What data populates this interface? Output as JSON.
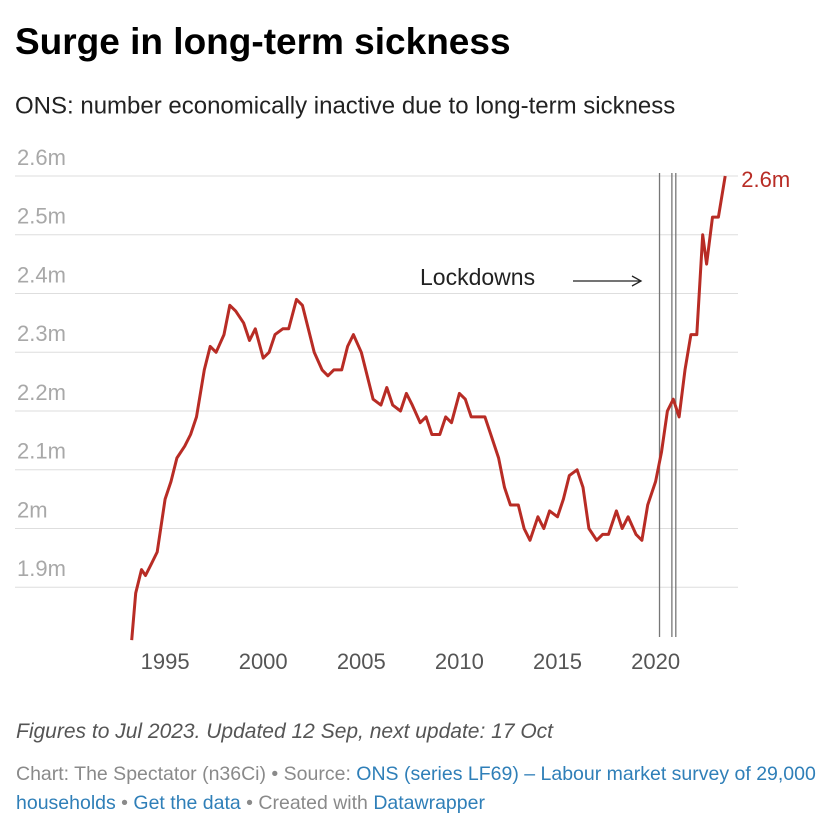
{
  "chart_data": {
    "type": "line",
    "title": "Surge in long-term sickness",
    "subtitle": "ONS: number economically inactive due to long-term sickness",
    "xlim": [
      1987.35,
      2024.2
    ],
    "xticks": [
      1995,
      2000,
      2005,
      2010,
      2015,
      2020
    ],
    "ylim": [
      1.8,
      2.6
    ],
    "yticks": [
      {
        "value": 1.9,
        "label": "1.9m"
      },
      {
        "value": 2.0,
        "label": "2m"
      },
      {
        "value": 2.1,
        "label": "2.1m"
      },
      {
        "value": 2.2,
        "label": "2.2m"
      },
      {
        "value": 2.3,
        "label": "2.3m"
      },
      {
        "value": 2.4,
        "label": "2.4m"
      },
      {
        "value": 2.5,
        "label": "2.5m"
      },
      {
        "value": 2.6,
        "label": "2.6m"
      }
    ],
    "grid": true,
    "series": [
      {
        "color": "#b82c25",
        "x": [
          1993.3,
          1993.5,
          1993.8,
          1994.0,
          1994.3,
          1994.6,
          1995.0,
          1995.3,
          1995.6,
          1996.0,
          1996.3,
          1996.6,
          1997.0,
          1997.3,
          1997.6,
          1998.0,
          1998.3,
          1998.6,
          1999.0,
          1999.3,
          1999.6,
          2000.0,
          2000.3,
          2000.6,
          2001.0,
          2001.3,
          2001.7,
          2002.0,
          2002.3,
          2002.6,
          2003.0,
          2003.3,
          2003.6,
          2004.0,
          2004.3,
          2004.6,
          2005.0,
          2005.3,
          2005.6,
          2006.0,
          2006.3,
          2006.6,
          2007.0,
          2007.3,
          2007.6,
          2008.0,
          2008.3,
          2008.6,
          2009.0,
          2009.3,
          2009.6,
          2010.0,
          2010.3,
          2010.6,
          2011.0,
          2011.3,
          2011.6,
          2012.0,
          2012.3,
          2012.6,
          2013.0,
          2013.3,
          2013.6,
          2014.0,
          2014.3,
          2014.6,
          2015.0,
          2015.3,
          2015.6,
          2016.0,
          2016.3,
          2016.6,
          2017.0,
          2017.3,
          2017.6,
          2018.0,
          2018.3,
          2018.6,
          2019.0,
          2019.3,
          2019.6,
          2020.0,
          2020.3,
          2020.6,
          2020.9,
          2021.2,
          2021.5,
          2021.8,
          2022.1,
          2022.4,
          2022.6,
          2022.9,
          2023.2,
          2023.55
        ],
        "values": [
          1.81,
          1.89,
          1.93,
          1.92,
          1.94,
          1.96,
          2.05,
          2.08,
          2.12,
          2.14,
          2.16,
          2.19,
          2.27,
          2.31,
          2.3,
          2.33,
          2.38,
          2.37,
          2.35,
          2.32,
          2.34,
          2.29,
          2.3,
          2.33,
          2.34,
          2.34,
          2.39,
          2.38,
          2.34,
          2.3,
          2.27,
          2.26,
          2.27,
          2.27,
          2.31,
          2.33,
          2.3,
          2.26,
          2.22,
          2.21,
          2.24,
          2.21,
          2.2,
          2.23,
          2.21,
          2.18,
          2.19,
          2.16,
          2.16,
          2.19,
          2.18,
          2.23,
          2.22,
          2.19,
          2.19,
          2.19,
          2.16,
          2.12,
          2.07,
          2.04,
          2.04,
          2.0,
          1.98,
          2.02,
          2.0,
          2.03,
          2.02,
          2.05,
          2.09,
          2.1,
          2.07,
          2.0,
          1.98,
          1.99,
          1.99,
          2.03,
          2.0,
          2.02,
          1.99,
          1.98,
          2.04,
          2.08,
          2.13,
          2.2,
          2.22,
          2.19,
          2.27,
          2.33,
          2.33,
          2.5,
          2.45,
          2.53,
          2.53,
          2.6
        ],
        "end_label": "2.6m"
      }
    ],
    "lockdowns": [
      2020.2,
      2020.83,
      2021.03
    ],
    "annotation": "Lockdowns",
    "note": "Figures to Jul 2023. Updated 12 Sep, next update: 17 Oct",
    "credit": [
      {
        "text": "Chart: The Spectator (n36Ci) • Source: ",
        "link": false
      },
      {
        "text": "ONS (series LF69) – Labour market survey of 29,000 households",
        "link": true
      },
      {
        "text": " • ",
        "link": false
      },
      {
        "text": "Get the data",
        "link": true
      },
      {
        "text": " • Created with ",
        "link": false
      },
      {
        "text": "Datawrapper",
        "link": true
      }
    ]
  }
}
